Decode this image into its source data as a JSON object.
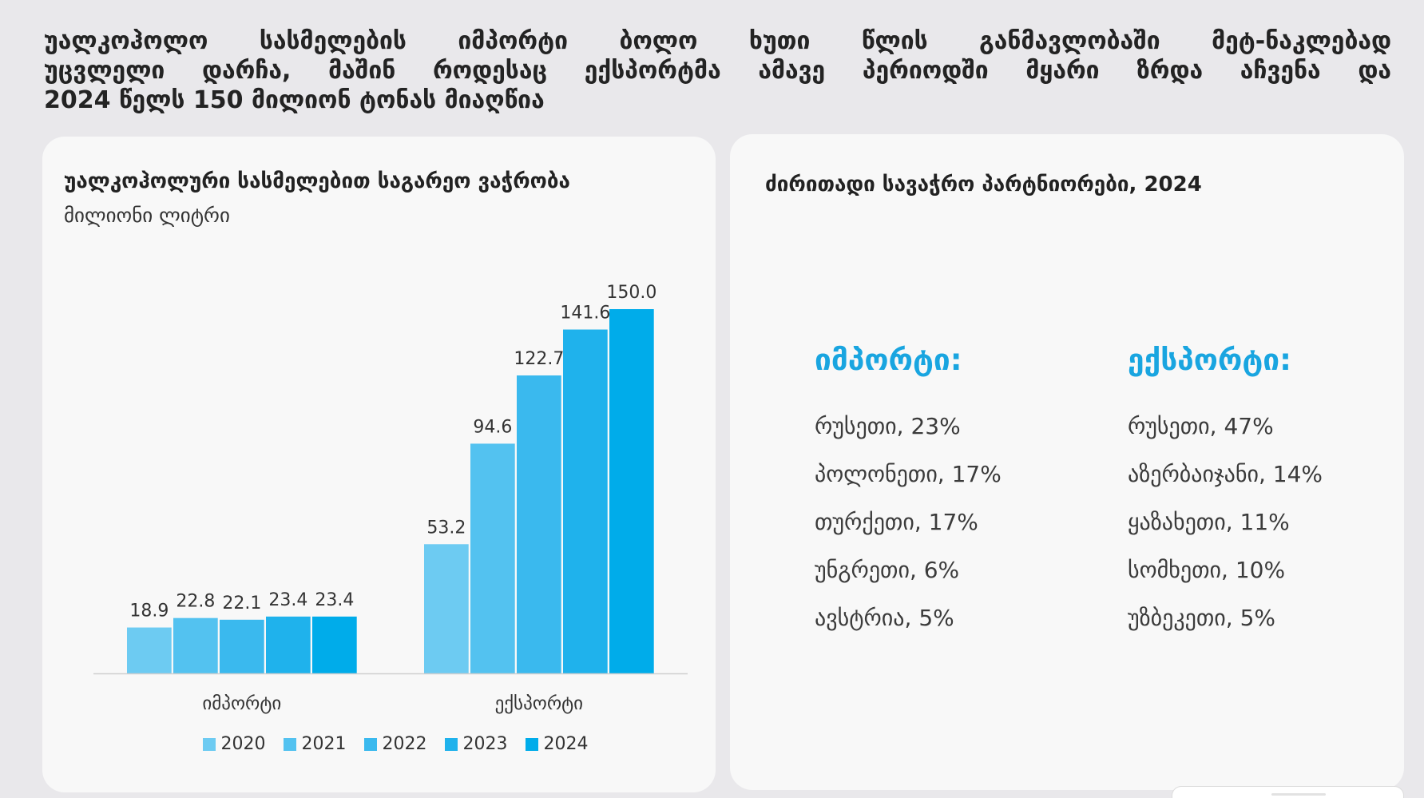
{
  "headline": {
    "lines": [
      "უალკოჰოლო სასმელების იმპორტი ბოლო ხუთი წლის განმავლობაში მეტ-ნაკლებად",
      "უცვლელი დარჩა, მაშინ როდესაც ექსპორტმა ამავე პერიოდში მყარი ზრდა აჩვენა და",
      "2024 წელს 150 მილიონ ტონას მიაღწია"
    ]
  },
  "chart_data": {
    "type": "bar",
    "title": "უალკოჰოლური სასმელებით საგარეო ვაჭრობა",
    "subtitle": "მილიონი ლიტრი",
    "xlabel": "",
    "ylabel": "",
    "categories": [
      "იმპორტი",
      "ექსპორტი"
    ],
    "series": [
      {
        "name": "2020",
        "values": [
          18.9,
          53.2
        ],
        "color": "#6dcbf2"
      },
      {
        "name": "2021",
        "values": [
          22.8,
          94.6
        ],
        "color": "#53c2f0"
      },
      {
        "name": "2022",
        "values": [
          22.1,
          122.7
        ],
        "color": "#3ab9ee"
      },
      {
        "name": "2023",
        "values": [
          23.4,
          141.6
        ],
        "color": "#1fb2ec"
      },
      {
        "name": "2024",
        "values": [
          23.4,
          150.0
        ],
        "color": "#00acea"
      }
    ],
    "ylim": [
      0,
      150
    ],
    "grid": false,
    "legend": "bottom",
    "data_labels": true
  },
  "partners": {
    "title": "ძირითადი სავაჭრო პარტნიორები, 2024",
    "columns": [
      {
        "heading": "იმპორტი:",
        "items": [
          "რუსეთი, 23%",
          "პოლონეთი, 17%",
          "თურქეთი, 17%",
          "უნგრეთი, 6%",
          "ავსტრია, 5%"
        ]
      },
      {
        "heading": "ექსპორტი:",
        "items": [
          "რუსეთი, 47%",
          "აზერბაიჯანი, 14%",
          "ყაზახეთი, 11%",
          "სომხეთი, 10%",
          "უზბეკეთი, 5%"
        ]
      }
    ]
  },
  "colors": {
    "background": "#e9e8eb",
    "card": "#f8f8f8",
    "accent": "#19a5e0",
    "axis": "#cfcfcf"
  }
}
